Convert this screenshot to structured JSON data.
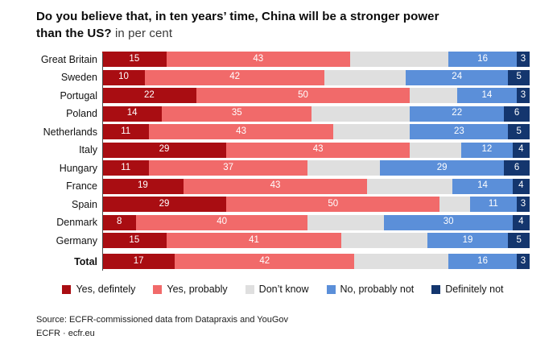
{
  "title": {
    "line1": "Do you believe that, in ten years’ time, China will be a stronger power",
    "line2_bold": "than the US?",
    "line2_subtitle": " in per cent"
  },
  "chart_data": {
    "type": "bar",
    "orientation": "horizontal",
    "stacked": true,
    "unit": "per cent",
    "xlim": [
      0,
      100
    ],
    "grid": false,
    "legend_position": "bottom",
    "value_labels": "white, centered inside segments; Don't know segments unlabeled",
    "categories": [
      "Great Britain",
      "Sweden",
      "Portugal",
      "Poland",
      "Netherlands",
      "Italy",
      "Hungary",
      "France",
      "Spain",
      "Denmark",
      "Germany",
      "Total"
    ],
    "series": [
      {
        "name": "Yes, defintely",
        "color": "#a90d12",
        "show_value_labels": true,
        "values": [
          15,
          10,
          22,
          14,
          11,
          29,
          11,
          19,
          29,
          8,
          15,
          17
        ]
      },
      {
        "name": "Yes, probably",
        "color": "#f16a6a",
        "show_value_labels": true,
        "values": [
          43,
          42,
          50,
          35,
          43,
          43,
          37,
          43,
          50,
          40,
          41,
          42
        ]
      },
      {
        "name": "Don’t know",
        "color": "#dfdfdf",
        "show_value_labels": false,
        "values": [
          23,
          19,
          11,
          23,
          18,
          12,
          17,
          20,
          7,
          18,
          20,
          22
        ]
      },
      {
        "name": "No, probably not",
        "color": "#5b8fd9",
        "show_value_labels": true,
        "values": [
          16,
          24,
          14,
          22,
          23,
          12,
          29,
          14,
          11,
          30,
          19,
          16
        ]
      },
      {
        "name": "Definitely not",
        "color": "#14366e",
        "show_value_labels": true,
        "values": [
          3,
          5,
          3,
          6,
          5,
          4,
          6,
          4,
          3,
          4,
          5,
          3
        ]
      }
    ]
  },
  "source": {
    "line1": "Source: ECFR-commissioned data from Datapraxis and YouGov",
    "line2": "ECFR · ecfr.eu"
  }
}
